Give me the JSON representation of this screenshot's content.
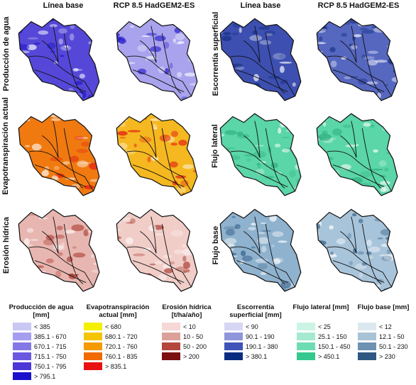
{
  "headers": {
    "left_base": "Línea base",
    "left_rcp": "RCP 8.5 HadGEM2-ES",
    "right_base": "Línea base",
    "right_rcp": "RCP 8.5 HadGEM2-ES"
  },
  "rows": {
    "water_yield": "Producción de agua",
    "evapotranspiration": "Evapotranspiración actual",
    "erosion": "Erosión hídrica",
    "runoff": "Escorrentía superficial",
    "lateral_flow": "Flujo lateral",
    "base_flow": "Flujo base"
  },
  "maps": {
    "water_yield": {
      "base_color": "#5548d8",
      "rcp_color": "#a9a3ee",
      "accent": "#1a10c8"
    },
    "evapotranspiration": {
      "base_color": "#f07a10",
      "rcp_color": "#f5b820",
      "accent": "#e01010"
    },
    "erosion": {
      "base_color": "#e8b6b0",
      "rcp_color": "#f1cdc8",
      "accent": "#a83a30"
    },
    "runoff": {
      "base_color": "#3d4fb0",
      "rcp_color": "#5667c0",
      "accent": "#0d2a7a"
    },
    "lateral_flow": {
      "base_color": "#5ad6a8",
      "rcp_color": "#5ad6a8",
      "accent": "#2fae80"
    },
    "base_flow": {
      "base_color": "#8fb2ce",
      "rcp_color": "#a8c4da",
      "accent": "#2e5c86"
    }
  },
  "legends": [
    {
      "title": "Producción de agua [mm]",
      "items": [
        {
          "label": "< 385",
          "color": "#c9c8f2"
        },
        {
          "label": "385.1 - 670",
          "color": "#a59ef0"
        },
        {
          "label": "670.1 - 715",
          "color": "#8478e6"
        },
        {
          "label": "715.1 - 750",
          "color": "#6a58e0"
        },
        {
          "label": "750.1 - 795",
          "color": "#4b36d8"
        },
        {
          "label": "> 795.1",
          "color": "#1a10cc"
        }
      ]
    },
    {
      "title": "Evapotranspiración actual [mm]",
      "items": [
        {
          "label": "< 680",
          "color": "#f5f000"
        },
        {
          "label": "680.1 - 720",
          "color": "#f5c400"
        },
        {
          "label": "720.1 - 760",
          "color": "#f59a00"
        },
        {
          "label": "760.1 - 835",
          "color": "#f06a00"
        },
        {
          "label": "> 835.1",
          "color": "#e81010"
        }
      ]
    },
    {
      "title": "Erosión hídrica [t/ha/año]",
      "items": [
        {
          "label": "< 10",
          "color": "#f6d8d6"
        },
        {
          "label": "10 - 50",
          "color": "#dca09a"
        },
        {
          "label": "50 - 200",
          "color": "#b4473c"
        },
        {
          "label": "> 200",
          "color": "#7a1010"
        }
      ]
    },
    {
      "title": "Escorrentía superficial [mm]",
      "items": [
        {
          "label": "< 90",
          "color": "#d6d6f4"
        },
        {
          "label": "90.1 - 190",
          "color": "#8f96dc"
        },
        {
          "label": "190.1 - 380",
          "color": "#3f54b8"
        },
        {
          "label": "> 380.1",
          "color": "#0a2c80"
        }
      ]
    },
    {
      "title": "Flujo lateral [mm]",
      "items": [
        {
          "label": "< 25",
          "color": "#ccf4e4"
        },
        {
          "label": "25.1 - 150",
          "color": "#a4ead0"
        },
        {
          "label": "150.1 - 450",
          "color": "#6edcb2"
        },
        {
          "label": "> 450.1",
          "color": "#34c88e"
        }
      ]
    },
    {
      "title": "Flujo base [mm]",
      "items": [
        {
          "label": "< 12",
          "color": "#dce8f0"
        },
        {
          "label": "12.1 - 50",
          "color": "#a8c2d6"
        },
        {
          "label": "50.1 - 230",
          "color": "#6e92b2"
        },
        {
          "label": "> 230",
          "color": "#2e5882"
        }
      ]
    }
  ]
}
